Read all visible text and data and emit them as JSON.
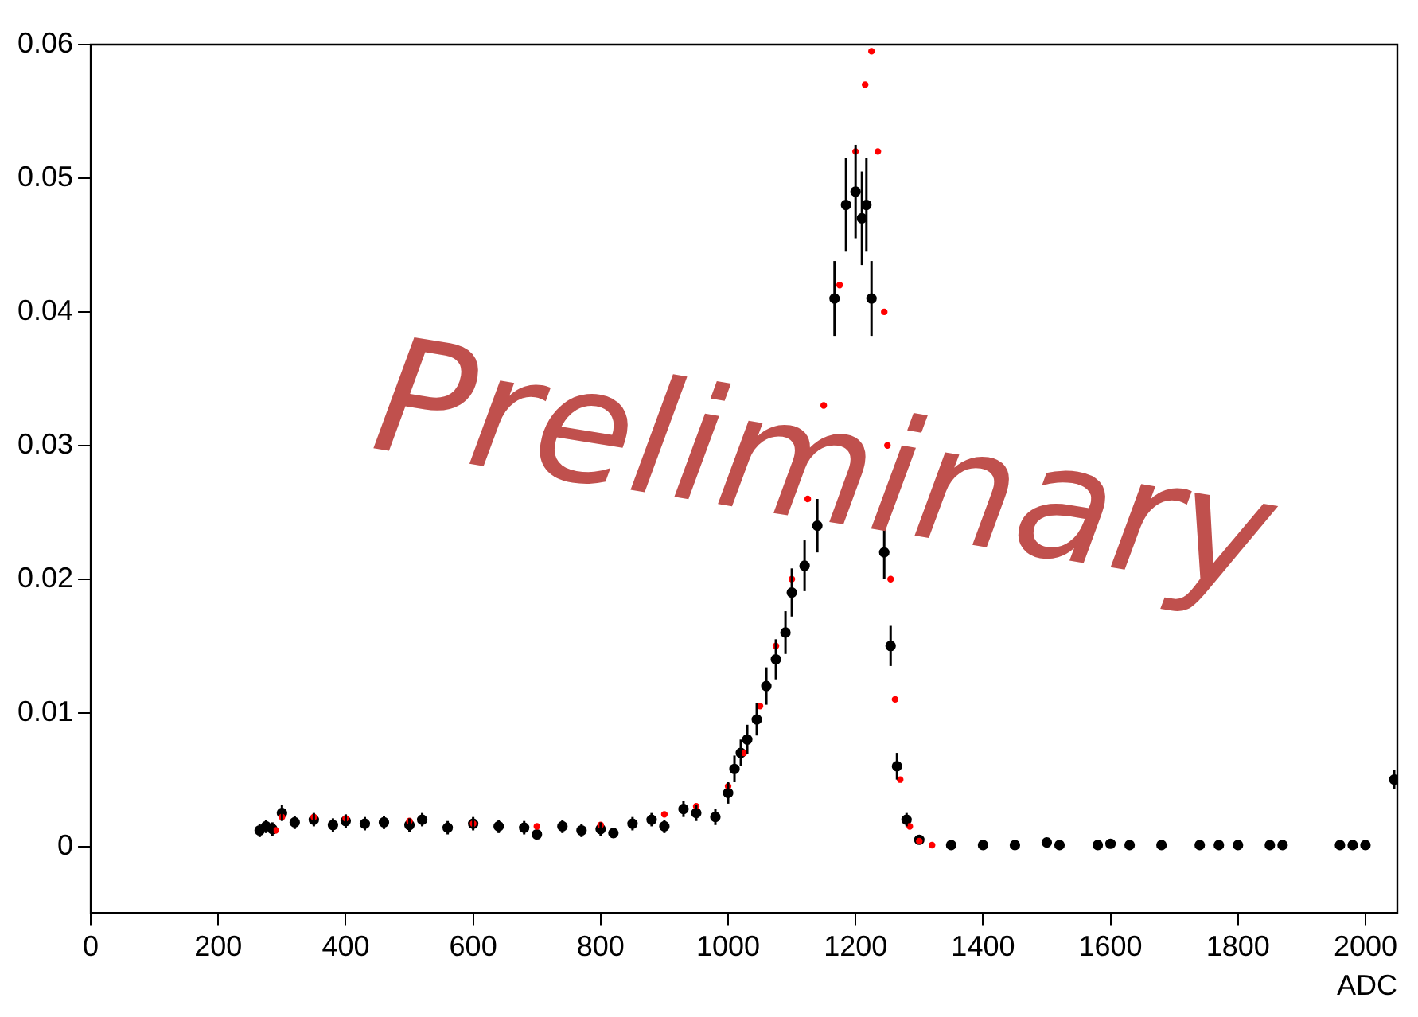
{
  "chart_data": {
    "type": "scatter",
    "xlabel": "ADC",
    "xlim": [
      0,
      2050
    ],
    "xticks": [
      0,
      200,
      400,
      600,
      800,
      1000,
      1200,
      1400,
      1600,
      1800,
      2000
    ],
    "ylim": [
      -0.005,
      0.06
    ],
    "yticks": [
      0,
      0.01,
      0.02,
      0.03,
      0.04,
      0.05,
      0.06
    ],
    "grid": false,
    "legend": false,
    "marker": "circle",
    "annotations": [
      "Preliminary"
    ],
    "series": [
      {
        "color": "#000000",
        "x": [
          265,
          275,
          285,
          300,
          320,
          350,
          380,
          400,
          430,
          460,
          500,
          520,
          560,
          600,
          640,
          680,
          700,
          740,
          770,
          800,
          820,
          850,
          880,
          900,
          930,
          950,
          980,
          1000,
          1010,
          1020,
          1030,
          1045,
          1060,
          1075,
          1090,
          1100,
          1120,
          1140,
          1167,
          1185,
          1200,
          1210,
          1217,
          1225,
          1245,
          1255,
          1265,
          1280,
          1300,
          1350,
          1400,
          1450,
          1500,
          1520,
          1580,
          1600,
          1630,
          1680,
          1740,
          1770,
          1800,
          1850,
          1870,
          1960,
          1980,
          2000,
          2045
        ],
        "values": [
          0.0012,
          0.0015,
          0.0013,
          0.0025,
          0.0018,
          0.002,
          0.0016,
          0.0019,
          0.0017,
          0.0018,
          0.0016,
          0.002,
          0.0014,
          0.0017,
          0.0015,
          0.0014,
          0.0009,
          0.0015,
          0.0012,
          0.0013,
          0.001,
          0.0017,
          0.002,
          0.0015,
          0.0028,
          0.0025,
          0.0022,
          0.004,
          0.0058,
          0.007,
          0.008,
          0.0095,
          0.012,
          0.014,
          0.016,
          0.019,
          0.021,
          0.024,
          0.041,
          0.048,
          0.049,
          0.047,
          0.048,
          0.041,
          0.022,
          0.015,
          0.006,
          0.002,
          0.0005,
          0.0001,
          0.0001,
          0.0001,
          0.0003,
          0.0001,
          0.0001,
          0.0002,
          0.0001,
          0.0001,
          0.0001,
          0.0001,
          0.0001,
          0.0001,
          0.0001,
          0.0001,
          0.0001,
          0.0001,
          0.005
        ],
        "errors": [
          0.0005,
          0.0005,
          0.0005,
          0.0006,
          0.0005,
          0.0005,
          0.0005,
          0.0005,
          0.0005,
          0.0005,
          0.0005,
          0.0005,
          0.0005,
          0.0005,
          0.0005,
          0.0005,
          null,
          0.0005,
          0.0005,
          0.0005,
          null,
          0.0005,
          0.0005,
          0.0005,
          0.0006,
          0.0006,
          0.0006,
          0.0008,
          0.001,
          0.001,
          0.0011,
          0.0012,
          0.0014,
          0.0015,
          0.0016,
          0.0018,
          0.0019,
          0.002,
          0.0028,
          0.0035,
          0.0035,
          0.0035,
          0.0035,
          0.0028,
          0.002,
          0.0015,
          0.001,
          0.0005,
          null,
          null,
          null,
          null,
          null,
          null,
          null,
          null,
          null,
          null,
          null,
          null,
          null,
          null,
          null,
          null,
          null,
          null,
          0.0007
        ]
      },
      {
        "color": "#ff0000",
        "x": [
          290,
          300,
          350,
          400,
          500,
          600,
          700,
          800,
          900,
          950,
          1000,
          1025,
          1050,
          1075,
          1100,
          1125,
          1150,
          1175,
          1200,
          1215,
          1225,
          1235,
          1245,
          1250,
          1255,
          1262,
          1270,
          1285,
          1300,
          1320
        ],
        "values": [
          0.0012,
          0.0022,
          0.0022,
          0.0021,
          0.0019,
          0.0017,
          0.0015,
          0.0016,
          0.0024,
          0.003,
          0.0045,
          0.007,
          0.0105,
          0.015,
          0.02,
          0.026,
          0.033,
          0.042,
          0.052,
          0.057,
          0.0595,
          0.052,
          0.04,
          0.03,
          0.02,
          0.011,
          0.005,
          0.0015,
          0.0004,
          0.0001
        ]
      }
    ]
  }
}
